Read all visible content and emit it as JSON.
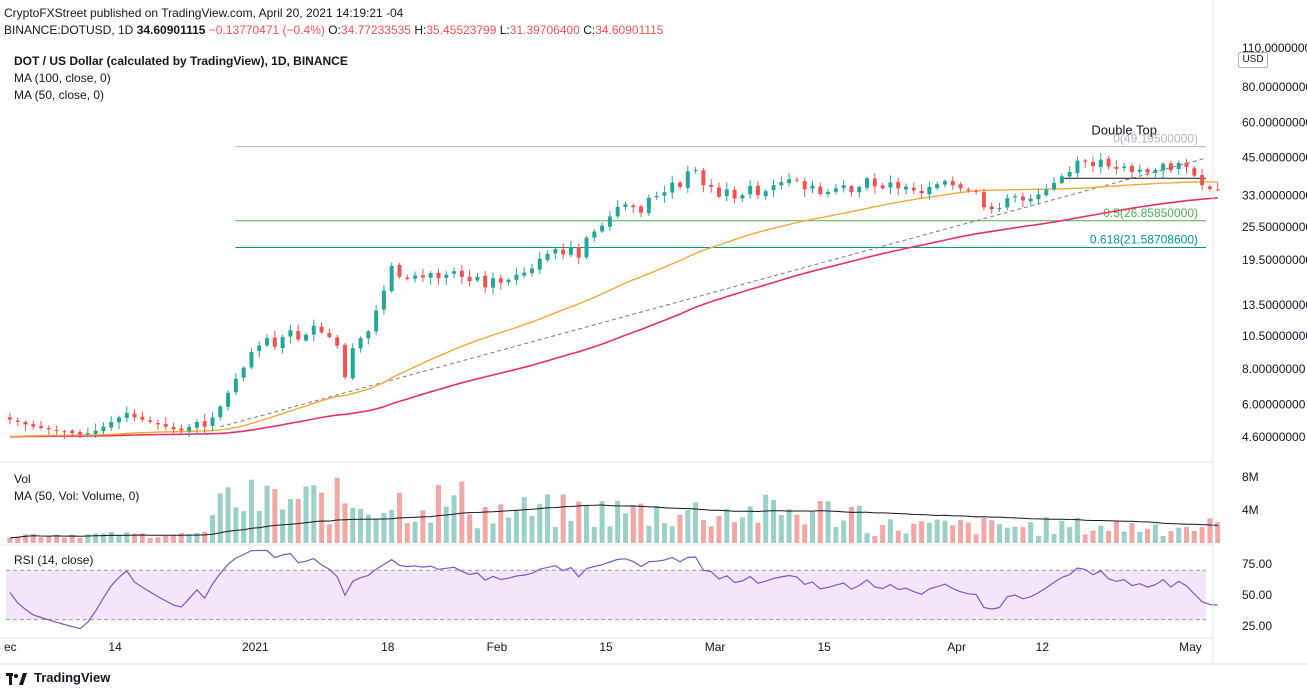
{
  "header": {
    "publisher_line": "CryptoFXStreet published on TradingView.com, April 20, 2021 14:19:21 -04",
    "symbol_short": "BINANCE:DOTUSD, 1D",
    "last": "34.60901115",
    "change": "−0.13770471 (−0.4%)",
    "o_label": "O:",
    "o": "34.77233535",
    "h_label": "H:",
    "h": "35.45523799",
    "l_label": "L:",
    "l": "31.39706400",
    "c_label": "C:",
    "c": "34.60901115",
    "title": "DOT / US Dollar (calculated by TradingView), 1D, BINANCE",
    "ma100": "MA (100, close, 0)",
    "ma50": "MA (50, close, 0)",
    "vol_title": "Vol",
    "vol_ma": "MA (50, Vol: Volume, 0)",
    "rsi_title": "RSI (14, close)",
    "currency": "USD"
  },
  "footer": {
    "brand": "TradingView"
  },
  "colors": {
    "up": "#26a69a",
    "down": "#ef5350",
    "ma50": "#f7a738",
    "ma100": "#e5316b",
    "vol_up": "#9bd0c8",
    "vol_down": "#f1a7a4",
    "rsi": "#7e57c2",
    "rsi_band": "#f3e6fb",
    "fib0": "#b2b5be",
    "fib05": "#4caf50",
    "fib0618": "#009688"
  },
  "chart_data": {
    "type": "candlestick",
    "symbol": "DOTUSD",
    "interval": "1D",
    "y_scale": "log",
    "price_ticks": [
      "110.00000000",
      "80.00000000",
      "60.00000000",
      "45.00000000",
      "33.00000000",
      "25.50000000",
      "19.50000000",
      "13.50000000",
      "10.50000000",
      "8.00000000",
      "6.00000000",
      "4.60000000"
    ],
    "price_tick_values": [
      110,
      80,
      60,
      45,
      33,
      25.5,
      19.5,
      13.5,
      10.5,
      8,
      6,
      4.6
    ],
    "x_ticks": [
      "ec",
      "14",
      "2021",
      "18",
      "Feb",
      "15",
      "Mar",
      "15",
      "Apr",
      "12",
      "May"
    ],
    "x_tick_dates": [
      "2020-11-30",
      "2020-12-14",
      "2021-01-01",
      "2021-01-18",
      "2021-02-01",
      "2021-02-15",
      "2021-03-01",
      "2021-03-15",
      "2021-04-01",
      "2021-04-12",
      "2021-05-01"
    ],
    "date_range": [
      "2020-11-30",
      "2021-05-03"
    ],
    "closes": [
      5.3,
      5.2,
      5.1,
      5.0,
      4.95,
      4.9,
      4.85,
      4.8,
      4.75,
      4.7,
      4.75,
      4.85,
      5.0,
      5.2,
      5.4,
      5.6,
      5.4,
      5.3,
      5.2,
      5.1,
      5.0,
      4.9,
      4.85,
      5.0,
      5.2,
      5.0,
      5.4,
      5.9,
      6.6,
      7.4,
      8.1,
      9.2,
      9.7,
      10.3,
      9.6,
      10.4,
      11.0,
      10.2,
      10.6,
      11.4,
      10.8,
      10.4,
      9.7,
      7.5,
      9.5,
      10.3,
      10.9,
      12.9,
      15.2,
      18.6,
      17.0,
      16.7,
      17.2,
      16.9,
      17.5,
      16.8,
      17.3,
      17.8,
      17.0,
      16.4,
      17.0,
      15.6,
      16.8,
      16.2,
      16.6,
      17.3,
      17.6,
      18.2,
      19.7,
      20.5,
      21.3,
      20.4,
      21.7,
      19.9,
      23.4,
      24.6,
      25.8,
      27.8,
      30.1,
      30.7,
      30.0,
      28.7,
      32.4,
      32.9,
      33.9,
      36.7,
      35.4,
      40.2,
      40.7,
      35.9,
      35.4,
      32.7,
      34.7,
      32.2,
      33.1,
      35.7,
      33.1,
      34.2,
      35.9,
      36.8,
      37.7,
      37.2,
      34.7,
      35.8,
      33.4,
      34.0,
      35.0,
      35.9,
      33.9,
      35.4,
      38.0,
      35.6,
      35.0,
      36.7,
      35.0,
      35.5,
      34.4,
      33.6,
      35.4,
      36.2,
      37.2,
      35.9,
      35.0,
      34.4,
      34.2,
      30.0,
      29.5,
      29.8,
      32.3,
      32.8,
      31.7,
      32.2,
      33.3,
      34.7,
      36.6,
      38.6,
      40.0,
      43.9,
      43.5,
      42.0,
      44.2,
      41.8,
      41.0,
      41.8,
      40.0,
      40.8,
      39.8,
      40.7,
      42.8,
      40.6,
      43.0,
      41.6,
      38.8,
      35.9,
      34.8,
      34.6
    ],
    "ma50_values": "50-day simple moving average of closes (orange)",
    "ma100_values": "100-day simple moving average of closes (magenta)",
    "fib_levels": [
      {
        "label": "0(49.19500000)",
        "value": 49.195
      },
      {
        "label": "0.5(26.85850000)",
        "value": 26.8585
      },
      {
        "label": "0.618(21.58708600)",
        "value": 21.587086
      }
    ],
    "annotations": [
      {
        "text": "Double Top"
      }
    ],
    "volume_ticks": [
      "8M",
      "4M"
    ],
    "volume_tick_values": [
      8000000,
      4000000
    ],
    "rsi_ticks": [
      "75.00",
      "50.00",
      "25.00"
    ],
    "rsi_tick_values": [
      75,
      50,
      25
    ],
    "rsi_band": [
      30,
      70
    ]
  }
}
